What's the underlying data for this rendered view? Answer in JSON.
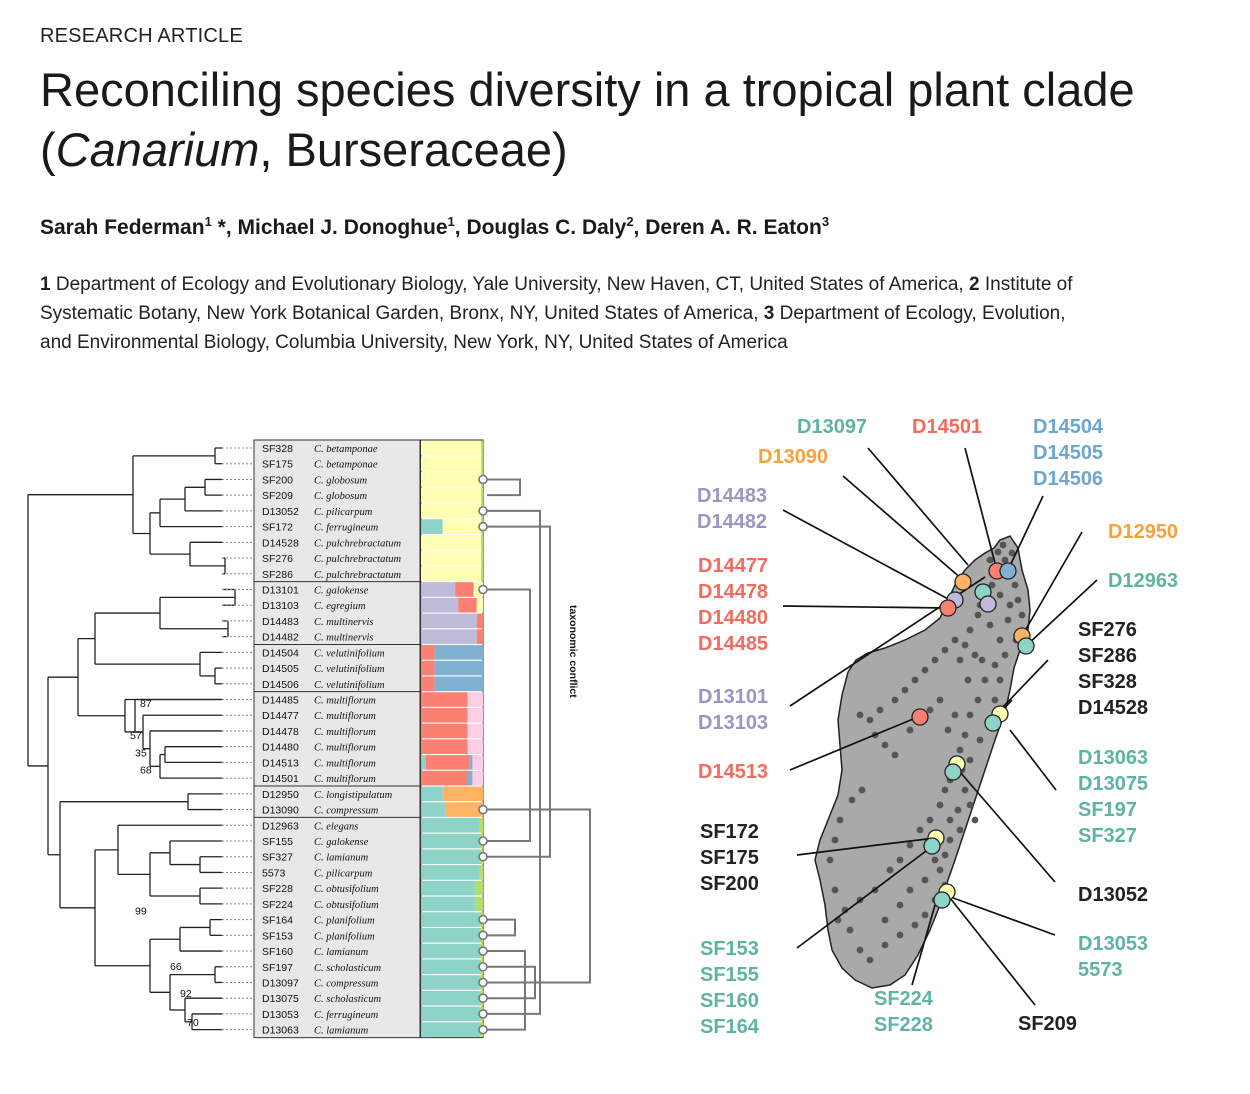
{
  "header": {
    "label": "RESEARCH ARTICLE",
    "title_part1": "Reconciling species diversity in a tropical plant clade (",
    "title_genus": "Canarium",
    "title_part2": ", Burseraceae)"
  },
  "authors": [
    {
      "name": "Sarah Federman",
      "sup": "1",
      "suffix": " *, "
    },
    {
      "name": "Michael J. Donoghue",
      "sup": "1",
      "suffix": ", "
    },
    {
      "name": "Douglas C. Daly",
      "sup": "2",
      "suffix": ", "
    },
    {
      "name": "Deren A. R. Eaton",
      "sup": "3",
      "suffix": ""
    }
  ],
  "affiliations": [
    {
      "num": "1",
      "text": "Department of Ecology and Evolutionary Biology, Yale University, New Haven, CT, United States of America,"
    },
    {
      "num": "2",
      "text": "Institute of Systematic Botany, New York Botanical Garden, Bronx, NY, United States of America,"
    },
    {
      "num": "3",
      "text": "Department of Ecology, Evolution, and Environmental Biology, Columbia University, New York, NY, United States of America"
    }
  ],
  "figure": {
    "conflict_label": "taxonomic conflict",
    "colors": {
      "yellow": "#ffffb3",
      "purple": "#bebada",
      "red": "#fb8072",
      "blue": "#80b1d3",
      "orange": "#fdb462",
      "teal": "#8dd3c7",
      "pink": "#fccde5",
      "green": "#b3de69",
      "black": "#222222"
    },
    "samples": [
      {
        "id": "SF328",
        "species": "C. betamponae"
      },
      {
        "id": "SF175",
        "species": "C. betamponae"
      },
      {
        "id": "SF200",
        "species": "C. globosum"
      },
      {
        "id": "SF209",
        "species": "C. globosum"
      },
      {
        "id": "D13052",
        "species": "C. pilicarpum"
      },
      {
        "id": "SF172",
        "species": "C. ferrugineum"
      },
      {
        "id": "D14528",
        "species": "C. pulchrebractatum"
      },
      {
        "id": "SF276",
        "species": "C. pulchrebractatum"
      },
      {
        "id": "SF286",
        "species": "C. pulchrebractatum"
      },
      {
        "id": "D13101",
        "species": "C. galokense"
      },
      {
        "id": "D13103",
        "species": "C. egregium"
      },
      {
        "id": "D14483",
        "species": "C. multinervis"
      },
      {
        "id": "D14482",
        "species": "C. multinervis"
      },
      {
        "id": "D14504",
        "species": "C. velutinifolium"
      },
      {
        "id": "D14505",
        "species": "C. velutinifolium"
      },
      {
        "id": "D14506",
        "species": "C. velutinifolium"
      },
      {
        "id": "D14485",
        "species": "C. multiflorum"
      },
      {
        "id": "D14477",
        "species": "C. multiflorum"
      },
      {
        "id": "D14478",
        "species": "C. multiflorum"
      },
      {
        "id": "D14480",
        "species": "C. multiflorum"
      },
      {
        "id": "D14513",
        "species": "C. multiflorum"
      },
      {
        "id": "D14501",
        "species": "C. multiflorum"
      },
      {
        "id": "D12950",
        "species": "C. longistipulatum"
      },
      {
        "id": "D13090",
        "species": "C. compressum"
      },
      {
        "id": "D12963",
        "species": "C. elegans"
      },
      {
        "id": "SF155",
        "species": "C. galokense"
      },
      {
        "id": "SF327",
        "species": "C. lamianum"
      },
      {
        "id": "5573",
        "species": "C. pilicarpum"
      },
      {
        "id": "SF228",
        "species": "C. obtusifolium"
      },
      {
        "id": "SF224",
        "species": "C. obtusifolium"
      },
      {
        "id": "SF164",
        "species": "C. planifolium"
      },
      {
        "id": "SF153",
        "species": "C. planifolium"
      },
      {
        "id": "SF160",
        "species": "C. lamianum"
      },
      {
        "id": "SF197",
        "species": "C. scholasticum"
      },
      {
        "id": "D13097",
        "species": "C. compressum"
      },
      {
        "id": "D13075",
        "species": "C. scholasticum"
      },
      {
        "id": "D13053",
        "species": "C. ferrugineum"
      },
      {
        "id": "D13063",
        "species": "C. lamianum"
      }
    ],
    "bootstrap_labels": [
      "87",
      "57",
      "35",
      "68",
      "99",
      "66",
      "92",
      "70"
    ],
    "map_labels": [
      {
        "lines": [
          "D13097"
        ],
        "color": "teal"
      },
      {
        "lines": [
          "D14501"
        ],
        "color": "red"
      },
      {
        "lines": [
          "D14504",
          "D14505",
          "D14506"
        ],
        "color": "blue"
      },
      {
        "lines": [
          "D13090"
        ],
        "color": "orange"
      },
      {
        "lines": [
          "D14483",
          "D14482"
        ],
        "color": "purple"
      },
      {
        "lines": [
          "D12950"
        ],
        "color": "orange"
      },
      {
        "lines": [
          "D12963"
        ],
        "color": "teal"
      },
      {
        "lines": [
          "D14477",
          "D14478",
          "D14480",
          "D14485"
        ],
        "color": "red"
      },
      {
        "lines": [
          "SF276",
          "SF286",
          "SF328",
          "D14528"
        ],
        "color": "black"
      },
      {
        "lines": [
          "D13101",
          "D13103"
        ],
        "color": "purple"
      },
      {
        "lines": [
          "D14513"
        ],
        "color": "red"
      },
      {
        "lines": [
          "D13063",
          "D13075",
          "SF197",
          "SF327"
        ],
        "color": "teal"
      },
      {
        "lines": [
          "SF172",
          "SF175",
          "SF200"
        ],
        "color": "black"
      },
      {
        "lines": [
          "D13052"
        ],
        "color": "black"
      },
      {
        "lines": [
          "SF153",
          "SF155",
          "SF160",
          "SF164"
        ],
        "color": "teal"
      },
      {
        "lines": [
          "D13053",
          "5573"
        ],
        "color": "teal"
      },
      {
        "lines": [
          "SF224",
          "SF228"
        ],
        "color": "teal"
      },
      {
        "lines": [
          "SF209"
        ],
        "color": "black"
      }
    ]
  }
}
